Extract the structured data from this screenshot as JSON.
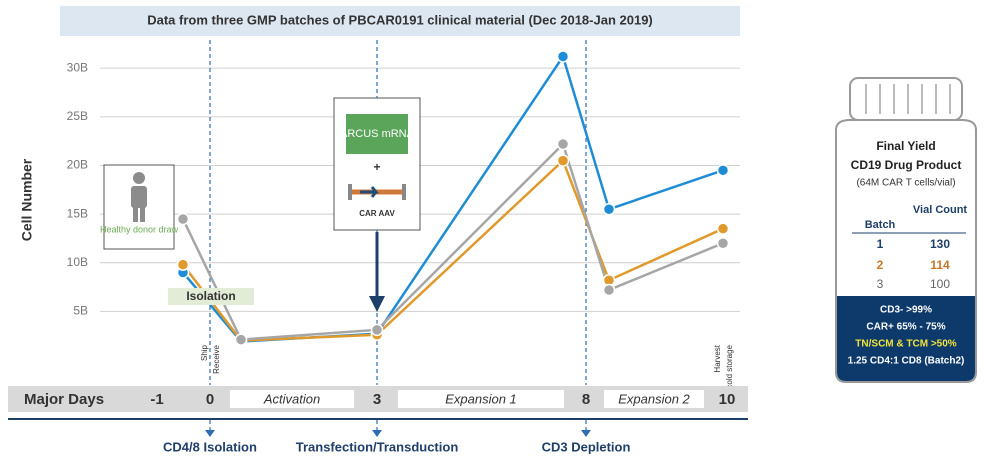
{
  "chart_data": {
    "type": "line",
    "title": "Data from three GMP batches of PBCAR0191 clinical material (Dec 2018-Jan 2019)",
    "y_label": "Cell Number",
    "categories": [
      null,
      null,
      null,
      null,
      null,
      null
    ],
    "series": [
      {
        "color": "#1f8dd6",
        "values": [
          9.0,
          1.9,
          2.7,
          31.2,
          15.5,
          19.5
        ]
      },
      {
        "color": "#e09a2c",
        "values": [
          9.8,
          2.0,
          2.6,
          20.5,
          8.2,
          13.5
        ]
      },
      {
        "color": "#a6a6a6",
        "values": [
          14.5,
          2.1,
          3.1,
          22.2,
          7.2,
          12.0
        ]
      }
    ],
    "ylim": [
      0,
      33
    ],
    "yticks": [
      {
        "value": 5,
        "label": "5B"
      },
      {
        "value": 10,
        "label": "10B"
      },
      {
        "value": 15,
        "label": "15B"
      },
      {
        "value": 20,
        "label": "20B"
      },
      {
        "value": 25,
        "label": "25B"
      },
      {
        "value": 30,
        "label": "30B"
      }
    ],
    "grid": true,
    "annotations": {
      "donor": "Healthy donor draw",
      "isolation": "Isolation",
      "arcus": "ARCUS mRNA",
      "plus": "+",
      "aav": "CAR AAV",
      "ship": "Ship",
      "receive": "Receive",
      "harvest": "Harvest",
      "cold": "cold storage"
    },
    "timeline": {
      "label": "Major Days",
      "days": [
        "-1",
        "0",
        "3",
        "8",
        "10"
      ],
      "phases": [
        "Activation",
        "Expansion 1",
        "Expansion 2"
      ],
      "events": [
        "CD4/8 Isolation",
        "Transfection/Transduction",
        "CD3 Depletion"
      ]
    }
  },
  "final_yield": {
    "title": "Final Yield",
    "product": "CD19 Drug Product",
    "note": "(64M CAR T cells/vial)",
    "header": [
      "Batch",
      "Vial Count"
    ],
    "rows": [
      [
        "1",
        "130"
      ],
      [
        "2",
        "114"
      ],
      [
        "3",
        "100"
      ]
    ],
    "specs": [
      "CD3- >99%",
      "CAR+ 65% - 75%",
      "TN/SCM & TCM >50%",
      "1.25 CD4:1 CD8 (Batch2)"
    ]
  }
}
